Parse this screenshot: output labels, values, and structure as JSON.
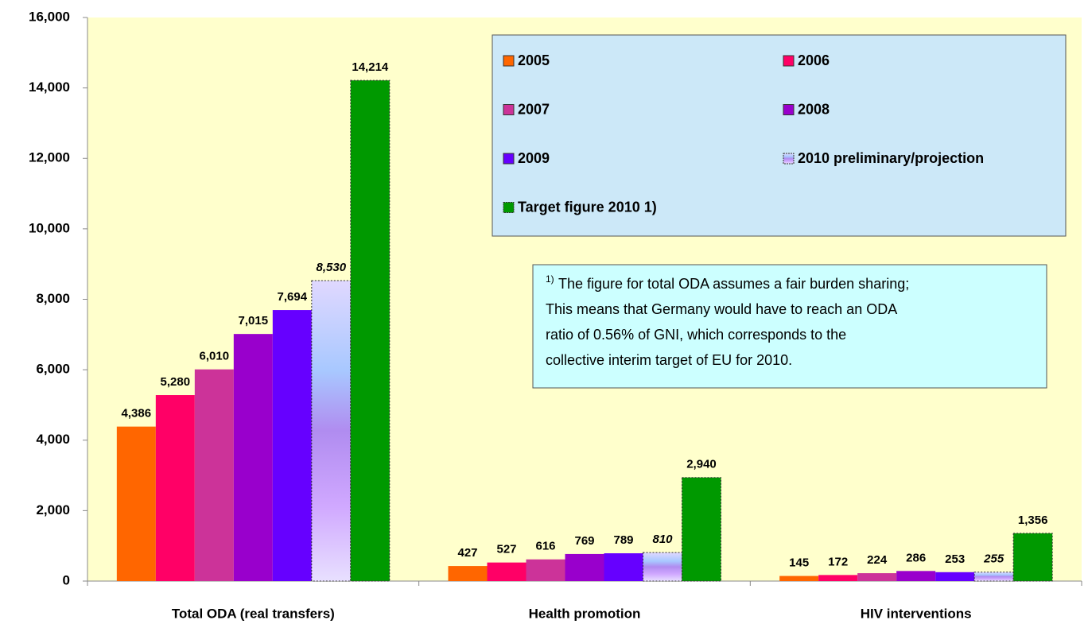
{
  "chart_data": {
    "type": "bar",
    "categories": [
      "Total ODA (real transfers)",
      "Health promotion",
      "HIV interventions"
    ],
    "series": [
      {
        "name": "2005",
        "color": "#ff6600",
        "values": [
          4386,
          427,
          145
        ],
        "value_labels": [
          "4,386",
          "427",
          "145"
        ]
      },
      {
        "name": "2006",
        "color": "#ff0066",
        "values": [
          5280,
          527,
          172
        ],
        "value_labels": [
          "5,280",
          "527",
          "172"
        ]
      },
      {
        "name": "2007",
        "color": "#cc3399",
        "values": [
          6010,
          616,
          224
        ],
        "value_labels": [
          "6,010",
          "616",
          "224"
        ]
      },
      {
        "name": "2008",
        "color": "#9900cc",
        "values": [
          7015,
          769,
          286
        ],
        "value_labels": [
          "7,015",
          "769",
          "286"
        ]
      },
      {
        "name": "2009",
        "color": "#6600ff",
        "values": [
          7694,
          789,
          253
        ],
        "value_labels": [
          "7,694",
          "789",
          "253"
        ]
      },
      {
        "name": "2010 preliminary/projection",
        "color": "#b08cf0",
        "values": [
          8530,
          810,
          255
        ],
        "value_labels": [
          "8,530",
          "810",
          "255"
        ]
      },
      {
        "name": "Target figure 2010 1)",
        "color": "#009900",
        "values": [
          14214,
          2940,
          1356
        ],
        "value_labels": [
          "14,214",
          "2,940",
          "1,356"
        ]
      }
    ],
    "ylim": [
      0,
      16000
    ],
    "yticks": [
      0,
      {
        "value": 2000,
        "label": "2,000"
      },
      {
        "value": 4000,
        "label": "4,000"
      },
      {
        "value": 6000,
        "label": "6,000"
      },
      {
        "value": 8000,
        "label": "8,000"
      },
      {
        "value": 10000,
        "label": "10,000"
      },
      {
        "value": 12000,
        "label": "12,000"
      },
      {
        "value": 14000,
        "label": "14,000"
      },
      {
        "value": 16000,
        "label": "16,000"
      }
    ],
    "legend": "top-right",
    "note": {
      "marker": "1)",
      "lines": [
        "The figure for total ODA assumes a fair burden sharing;",
        "This means that Germany would have to reach an ODA",
        "ratio of 0.56% of GNI, which corresponds to the",
        "collective interim target of EU for 2010."
      ]
    }
  }
}
